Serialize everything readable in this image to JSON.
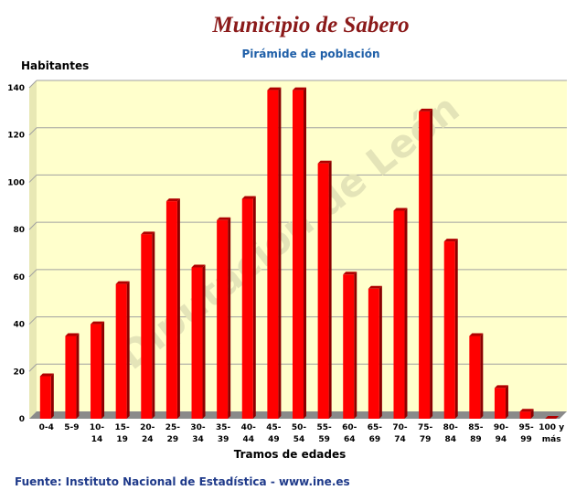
{
  "chart_data": {
    "type": "bar",
    "title": "Municipio de Sabero",
    "subtitle": "Pirámide de población",
    "ylabel": "Habitantes",
    "xlabel": "Tramos de edades",
    "ylim": [
      0,
      140
    ],
    "yticks": [
      0,
      20,
      40,
      60,
      80,
      100,
      120,
      140
    ],
    "grid": true,
    "categories": [
      [
        "0-4"
      ],
      [
        "5-9"
      ],
      [
        "10-",
        "14"
      ],
      [
        "15-",
        "19"
      ],
      [
        "20-",
        "24"
      ],
      [
        "25-",
        "29"
      ],
      [
        "30-",
        "34"
      ],
      [
        "35-",
        "39"
      ],
      [
        "40-",
        "44"
      ],
      [
        "45-",
        "49"
      ],
      [
        "50-",
        "54"
      ],
      [
        "55-",
        "59"
      ],
      [
        "60-",
        "64"
      ],
      [
        "65-",
        "69"
      ],
      [
        "70-",
        "74"
      ],
      [
        "75-",
        "79"
      ],
      [
        "80-",
        "84"
      ],
      [
        "85-",
        "89"
      ],
      [
        "90-",
        "94"
      ],
      [
        "95-",
        "99"
      ],
      [
        "100 y",
        "más"
      ]
    ],
    "values": [
      18,
      35,
      40,
      57,
      78,
      92,
      64,
      84,
      93,
      139,
      139,
      108,
      61,
      55,
      88,
      130,
      75,
      35,
      13,
      3,
      0
    ],
    "bar_color": "#ff0000",
    "bar_side_color": "#8b0000",
    "plot_background": "#ffffcc",
    "floor_color": "#8a8a8a",
    "watermark": "Diputación de León"
  },
  "footer": {
    "source": "Fuente: Instituto Nacional de Estadística - www.ine.es"
  }
}
